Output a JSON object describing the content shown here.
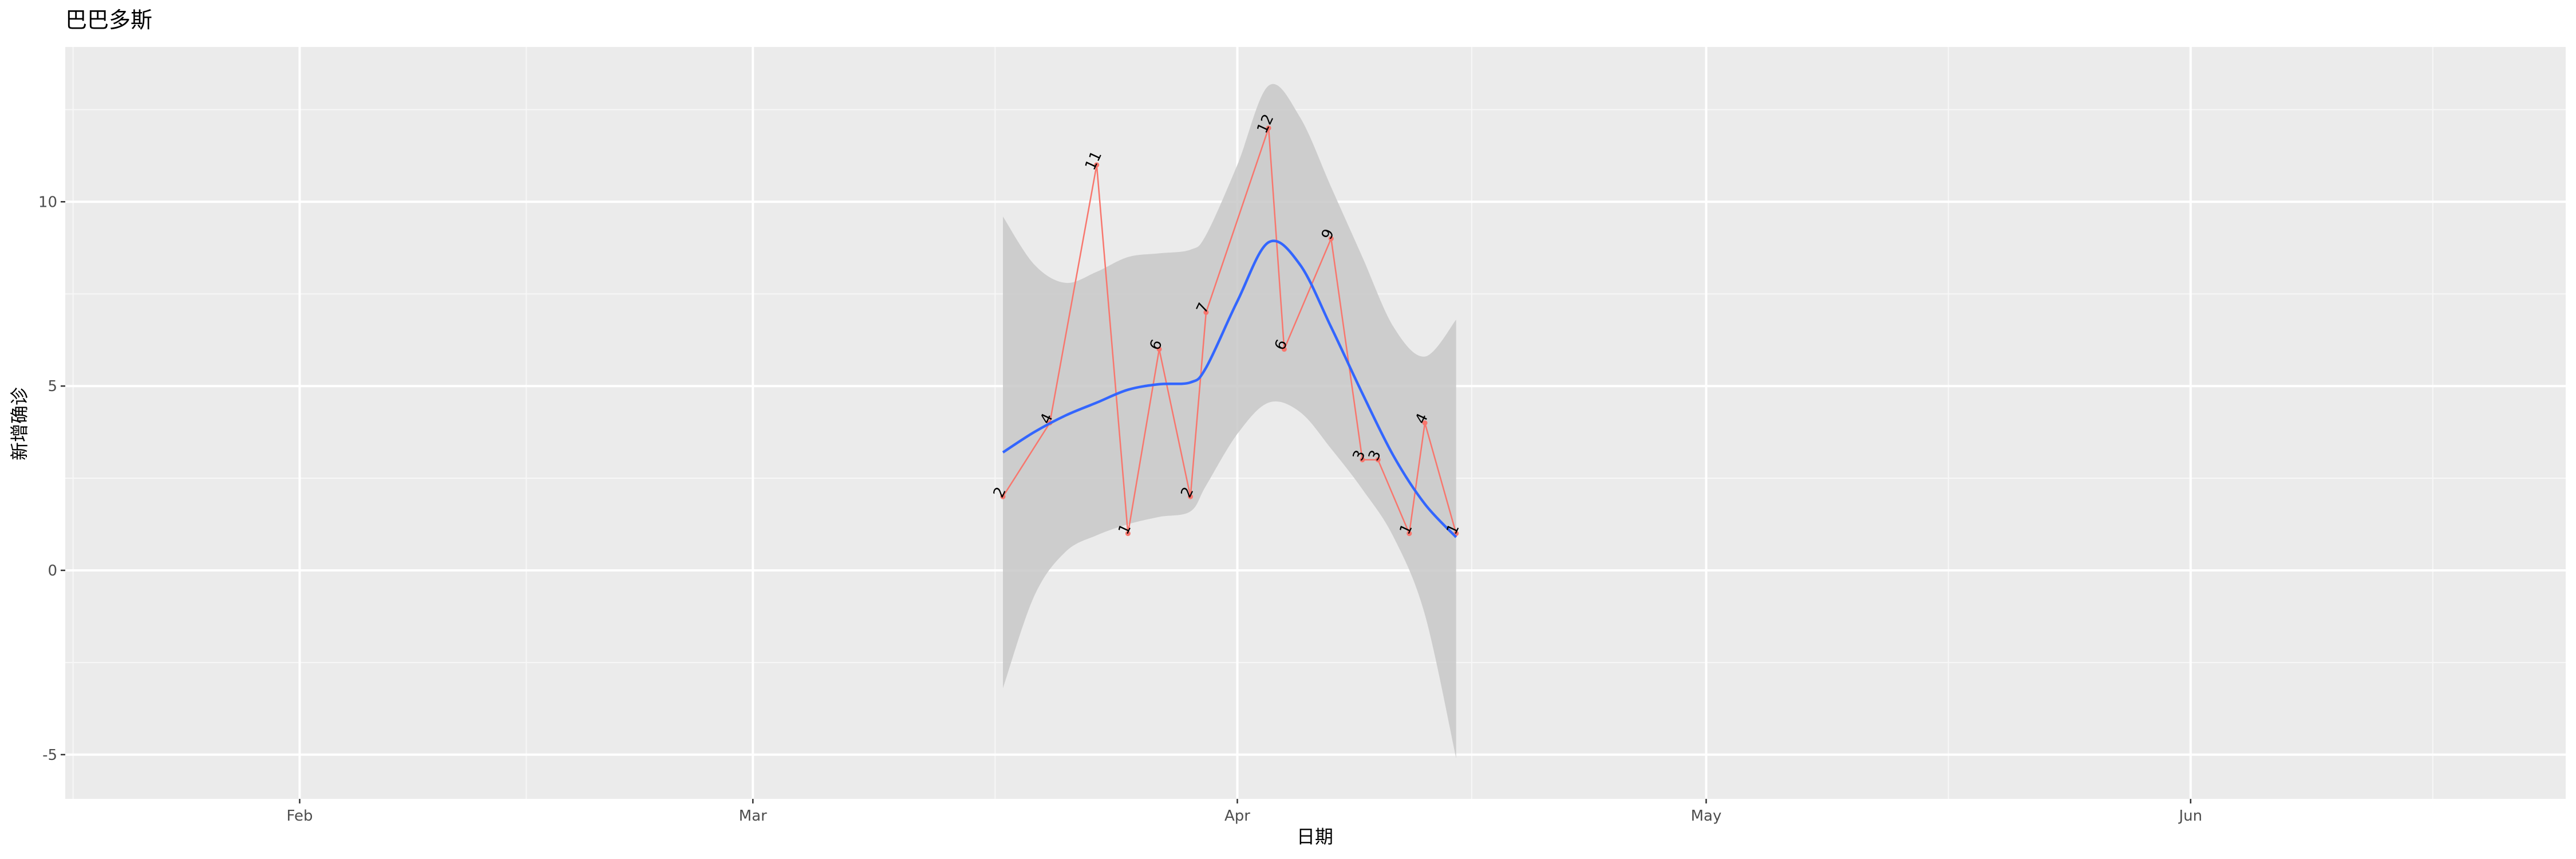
{
  "chart_data": {
    "type": "line",
    "title": "巴巴多斯",
    "xlabel": "日期",
    "ylabel": "新增确诊",
    "x_type": "date",
    "xlim": [
      "2020-01-17",
      "2020-06-25"
    ],
    "ylim": [
      -6.2,
      14.2
    ],
    "x_ticks": [
      {
        "date": "2020-02-01",
        "label": "Feb"
      },
      {
        "date": "2020-03-01",
        "label": "Mar"
      },
      {
        "date": "2020-04-01",
        "label": "Apr"
      },
      {
        "date": "2020-05-01",
        "label": "May"
      },
      {
        "date": "2020-06-01",
        "label": "Jun"
      }
    ],
    "y_ticks": [
      -5,
      0,
      5,
      10
    ],
    "grid": true,
    "series": [
      {
        "points": [
          {
            "date": "2020-03-17",
            "value": 2
          },
          {
            "date": "2020-03-20",
            "value": 4
          },
          {
            "date": "2020-03-23",
            "value": 11
          },
          {
            "date": "2020-03-25",
            "value": 1
          },
          {
            "date": "2020-03-27",
            "value": 6
          },
          {
            "date": "2020-03-29",
            "value": 2
          },
          {
            "date": "2020-03-30",
            "value": 7
          },
          {
            "date": "2020-04-03",
            "value": 12
          },
          {
            "date": "2020-04-04",
            "value": 6
          },
          {
            "date": "2020-04-07",
            "value": 9
          },
          {
            "date": "2020-04-09",
            "value": 3
          },
          {
            "date": "2020-04-10",
            "value": 3
          },
          {
            "date": "2020-04-12",
            "value": 1
          },
          {
            "date": "2020-04-13",
            "value": 4
          },
          {
            "date": "2020-04-15",
            "value": 1
          }
        ]
      }
    ],
    "smooth": {
      "method": "loess",
      "points": [
        {
          "date": "2020-03-17",
          "fit": 3.2,
          "lower": -3.2,
          "upper": 9.6
        },
        {
          "date": "2020-03-19",
          "fit": 3.75,
          "lower": -0.7,
          "upper": 8.3
        },
        {
          "date": "2020-03-21",
          "fit": 4.2,
          "lower": 0.5,
          "upper": 7.8
        },
        {
          "date": "2020-03-23",
          "fit": 4.55,
          "lower": 0.95,
          "upper": 8.1
        },
        {
          "date": "2020-03-25",
          "fit": 4.9,
          "lower": 1.25,
          "upper": 8.5
        },
        {
          "date": "2020-03-27",
          "fit": 5.05,
          "lower": 1.45,
          "upper": 8.6
        },
        {
          "date": "2020-03-29",
          "fit": 5.1,
          "lower": 1.6,
          "upper": 8.7
        },
        {
          "date": "2020-03-30",
          "fit": 5.5,
          "lower": 2.3,
          "upper": 9.1
        },
        {
          "date": "2020-04-01",
          "fit": 7.3,
          "lower": 3.7,
          "upper": 11.0
        },
        {
          "date": "2020-04-03",
          "fit": 8.9,
          "lower": 4.55,
          "upper": 13.15
        },
        {
          "date": "2020-04-05",
          "fit": 8.3,
          "lower": 4.3,
          "upper": 12.3
        },
        {
          "date": "2020-04-07",
          "fit": 6.6,
          "lower": 3.3,
          "upper": 10.4
        },
        {
          "date": "2020-04-09",
          "fit": 4.8,
          "lower": 2.2,
          "upper": 8.5
        },
        {
          "date": "2020-04-11",
          "fit": 3.1,
          "lower": 0.9,
          "upper": 6.6
        },
        {
          "date": "2020-04-13",
          "fit": 1.8,
          "lower": -1.2,
          "upper": 5.8
        },
        {
          "date": "2020-04-15",
          "fit": 0.9,
          "lower": -5.1,
          "upper": 6.8
        }
      ]
    },
    "colors": {
      "panel_background": "#ebebeb",
      "grid_major": "#ffffff",
      "grid_minor": "#f7f7f7",
      "series_line": "#f8766d",
      "smooth_line": "#3366ff",
      "confidence_band": "#c8c8c8"
    }
  }
}
